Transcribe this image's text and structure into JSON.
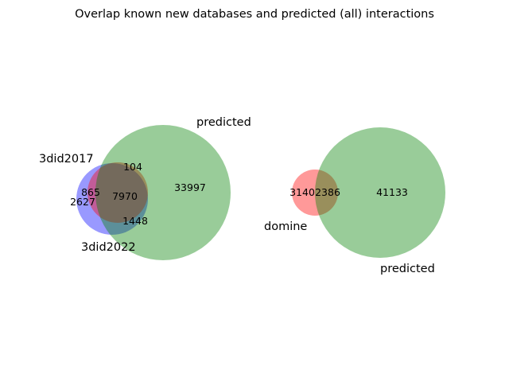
{
  "title": "Overlap known new databases and predicted (all) interactions",
  "left_diagram": {
    "sets": {
      "a": {
        "label": "3did2017",
        "color": "#ff0000"
      },
      "b": {
        "label": "3did2022",
        "color": "#0000ff"
      },
      "c": {
        "label": "predicted",
        "color": "#008000"
      }
    },
    "counts": {
      "a_only": "",
      "b_only": "2627",
      "c_only": "33997",
      "ab": "865",
      "ac": "104",
      "bc": "1448",
      "abc": "7970"
    }
  },
  "right_diagram": {
    "sets": {
      "a": {
        "label": "domine",
        "color": "#ff0000"
      },
      "b": {
        "label": "predicted",
        "color": "#008000"
      }
    },
    "counts": {
      "a_only": "3140",
      "ab": "2386",
      "b_only": "41133"
    }
  }
}
